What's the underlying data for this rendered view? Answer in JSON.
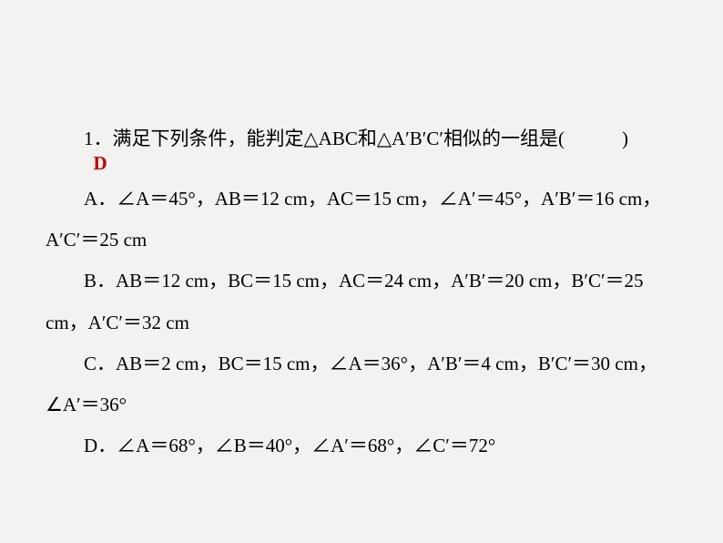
{
  "question": {
    "number": "1",
    "separator": "．",
    "text_prefix": "满足下列条件，能判定",
    "triangle1": "△ABC",
    "text_mid": "和",
    "triangle2": "△A′B′C′",
    "text_suffix_sans": "相似的一组是",
    "paren": "(　　　)"
  },
  "answer": "D",
  "options": {
    "A": {
      "label": "A．",
      "line1": "∠A＝45°，AB＝12 cm，AC＝15 cm，∠A′＝45°，A′B′＝16 cm，",
      "line2": "A′C′＝25 cm"
    },
    "B": {
      "label": "B．",
      "line1": "AB＝12 cm，BC＝15 cm，AC＝24 cm，A′B′＝20 cm，B′C′＝25",
      "line2": "cm，A′C′＝32 cm"
    },
    "C": {
      "label": "C．",
      "line1": "AB＝2 cm，BC＝15 cm，∠A＝36°，A′B′＝4 cm，B′C′＝30 cm，",
      "line2": "∠A′＝36°"
    },
    "D": {
      "label": "D",
      "separator": "．",
      "line1": "∠A＝68°，∠B＝40°，∠A′＝68°，∠C′＝72°"
    }
  }
}
